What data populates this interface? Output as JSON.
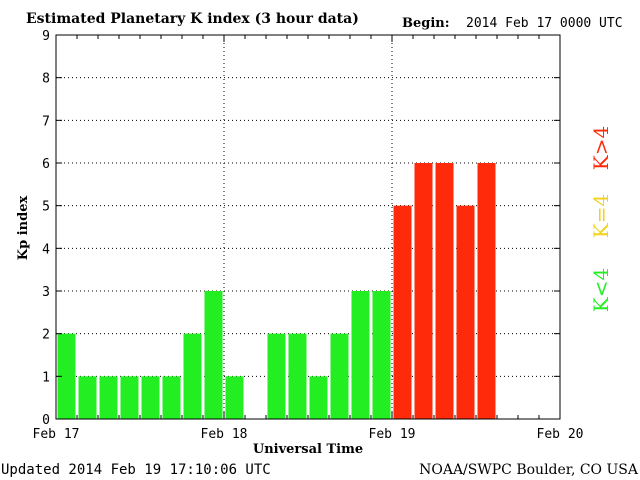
{
  "header": {
    "title": "Estimated Planetary K index (3 hour data)",
    "begin_label": "Begin:",
    "begin_value": "2014 Feb 17 0000 UTC"
  },
  "footer": {
    "updated": "Updated 2014 Feb 19 17:10:06 UTC",
    "credit": "NOAA/SWPC Boulder, CO USA"
  },
  "legend": {
    "low": "K<4",
    "mid": "K=4",
    "high": "K>4"
  },
  "colors": {
    "low": "#22ee22",
    "mid": "#f2d21a",
    "high": "#ff2a0a"
  },
  "chart_data": {
    "type": "bar",
    "title": "Estimated Planetary K index (3 hour data)",
    "xlabel": "Universal Time",
    "ylabel": "Kp index",
    "ylim": [
      0,
      9
    ],
    "yticks": [
      "0",
      "1",
      "2",
      "3",
      "4",
      "5",
      "6",
      "7",
      "8",
      "9"
    ],
    "xticks": [
      "Feb 17",
      "Feb 18",
      "Feb 19",
      "Feb 20"
    ],
    "interval_hours": 3,
    "grid": true,
    "values": [
      2,
      1,
      1,
      1,
      1,
      1,
      2,
      3,
      1,
      null,
      2,
      2,
      1,
      2,
      3,
      3,
      5,
      6,
      6,
      5,
      6
    ]
  }
}
